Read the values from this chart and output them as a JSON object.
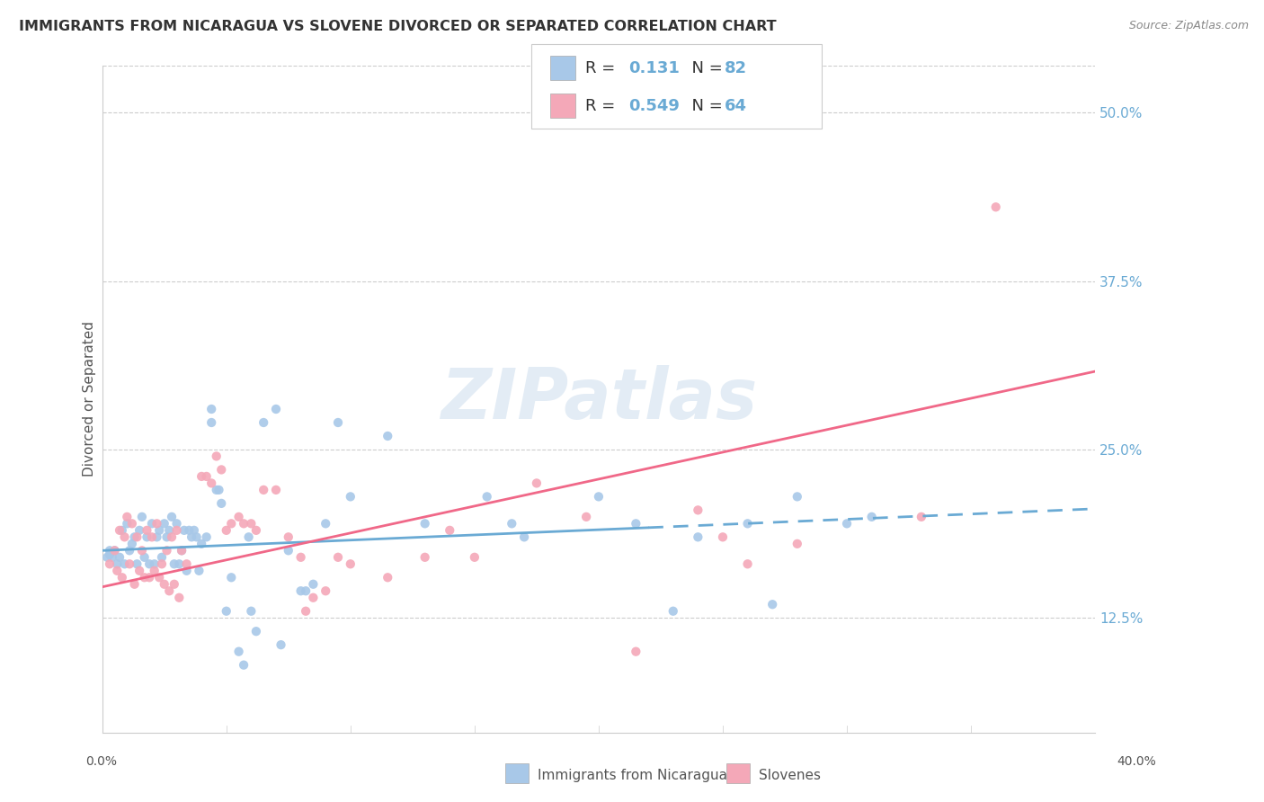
{
  "title": "IMMIGRANTS FROM NICARAGUA VS SLOVENE DIVORCED OR SEPARATED CORRELATION CHART",
  "source": "Source: ZipAtlas.com",
  "ylabel": "Divorced or Separated",
  "yticks": [
    "12.5%",
    "25.0%",
    "37.5%",
    "50.0%"
  ],
  "ytick_vals": [
    0.125,
    0.25,
    0.375,
    0.5
  ],
  "xrange": [
    0.0,
    0.4
  ],
  "yrange": [
    0.04,
    0.535
  ],
  "watermark": "ZIPatlas",
  "color_blue": "#a8c8e8",
  "color_pink": "#f4a8b8",
  "line_blue": "#6aaad4",
  "line_pink": "#f06888",
  "scatter_blue": [
    [
      0.002,
      0.17
    ],
    [
      0.003,
      0.172
    ],
    [
      0.003,
      0.175
    ],
    [
      0.004,
      0.17
    ],
    [
      0.005,
      0.175
    ],
    [
      0.006,
      0.165
    ],
    [
      0.007,
      0.17
    ],
    [
      0.008,
      0.19
    ],
    [
      0.009,
      0.165
    ],
    [
      0.01,
      0.195
    ],
    [
      0.011,
      0.175
    ],
    [
      0.012,
      0.18
    ],
    [
      0.013,
      0.185
    ],
    [
      0.014,
      0.165
    ],
    [
      0.015,
      0.19
    ],
    [
      0.016,
      0.2
    ],
    [
      0.017,
      0.17
    ],
    [
      0.018,
      0.185
    ],
    [
      0.019,
      0.165
    ],
    [
      0.02,
      0.195
    ],
    [
      0.021,
      0.165
    ],
    [
      0.022,
      0.185
    ],
    [
      0.023,
      0.19
    ],
    [
      0.024,
      0.17
    ],
    [
      0.025,
      0.195
    ],
    [
      0.026,
      0.185
    ],
    [
      0.027,
      0.19
    ],
    [
      0.028,
      0.2
    ],
    [
      0.029,
      0.165
    ],
    [
      0.03,
      0.195
    ],
    [
      0.031,
      0.165
    ],
    [
      0.032,
      0.175
    ],
    [
      0.033,
      0.19
    ],
    [
      0.034,
      0.16
    ],
    [
      0.035,
      0.19
    ],
    [
      0.036,
      0.185
    ],
    [
      0.037,
      0.19
    ],
    [
      0.038,
      0.185
    ],
    [
      0.039,
      0.16
    ],
    [
      0.04,
      0.18
    ],
    [
      0.042,
      0.185
    ],
    [
      0.044,
      0.28
    ],
    [
      0.044,
      0.27
    ],
    [
      0.046,
      0.22
    ],
    [
      0.047,
      0.22
    ],
    [
      0.048,
      0.21
    ],
    [
      0.05,
      0.13
    ],
    [
      0.052,
      0.155
    ],
    [
      0.055,
      0.1
    ],
    [
      0.057,
      0.09
    ],
    [
      0.059,
      0.185
    ],
    [
      0.06,
      0.13
    ],
    [
      0.062,
      0.115
    ],
    [
      0.065,
      0.27
    ],
    [
      0.07,
      0.28
    ],
    [
      0.072,
      0.105
    ],
    [
      0.075,
      0.175
    ],
    [
      0.08,
      0.145
    ],
    [
      0.082,
      0.145
    ],
    [
      0.085,
      0.15
    ],
    [
      0.09,
      0.195
    ],
    [
      0.095,
      0.27
    ],
    [
      0.1,
      0.215
    ],
    [
      0.115,
      0.26
    ],
    [
      0.13,
      0.195
    ],
    [
      0.155,
      0.215
    ],
    [
      0.165,
      0.195
    ],
    [
      0.17,
      0.185
    ],
    [
      0.2,
      0.215
    ],
    [
      0.215,
      0.195
    ],
    [
      0.23,
      0.13
    ],
    [
      0.24,
      0.185
    ],
    [
      0.26,
      0.195
    ],
    [
      0.27,
      0.135
    ],
    [
      0.28,
      0.215
    ],
    [
      0.3,
      0.195
    ],
    [
      0.31,
      0.2
    ]
  ],
  "scatter_pink": [
    [
      0.003,
      0.165
    ],
    [
      0.005,
      0.175
    ],
    [
      0.006,
      0.16
    ],
    [
      0.007,
      0.19
    ],
    [
      0.008,
      0.155
    ],
    [
      0.009,
      0.185
    ],
    [
      0.01,
      0.2
    ],
    [
      0.011,
      0.165
    ],
    [
      0.012,
      0.195
    ],
    [
      0.013,
      0.15
    ],
    [
      0.014,
      0.185
    ],
    [
      0.015,
      0.16
    ],
    [
      0.016,
      0.175
    ],
    [
      0.017,
      0.155
    ],
    [
      0.018,
      0.19
    ],
    [
      0.019,
      0.155
    ],
    [
      0.02,
      0.185
    ],
    [
      0.021,
      0.16
    ],
    [
      0.022,
      0.195
    ],
    [
      0.023,
      0.155
    ],
    [
      0.024,
      0.165
    ],
    [
      0.025,
      0.15
    ],
    [
      0.026,
      0.175
    ],
    [
      0.027,
      0.145
    ],
    [
      0.028,
      0.185
    ],
    [
      0.029,
      0.15
    ],
    [
      0.03,
      0.19
    ],
    [
      0.031,
      0.14
    ],
    [
      0.032,
      0.175
    ],
    [
      0.034,
      0.165
    ],
    [
      0.04,
      0.23
    ],
    [
      0.042,
      0.23
    ],
    [
      0.044,
      0.225
    ],
    [
      0.046,
      0.245
    ],
    [
      0.048,
      0.235
    ],
    [
      0.05,
      0.19
    ],
    [
      0.052,
      0.195
    ],
    [
      0.055,
      0.2
    ],
    [
      0.057,
      0.195
    ],
    [
      0.06,
      0.195
    ],
    [
      0.062,
      0.19
    ],
    [
      0.065,
      0.22
    ],
    [
      0.07,
      0.22
    ],
    [
      0.075,
      0.185
    ],
    [
      0.08,
      0.17
    ],
    [
      0.082,
      0.13
    ],
    [
      0.085,
      0.14
    ],
    [
      0.09,
      0.145
    ],
    [
      0.095,
      0.17
    ],
    [
      0.1,
      0.165
    ],
    [
      0.115,
      0.155
    ],
    [
      0.13,
      0.17
    ],
    [
      0.14,
      0.19
    ],
    [
      0.15,
      0.17
    ],
    [
      0.175,
      0.225
    ],
    [
      0.195,
      0.2
    ],
    [
      0.215,
      0.1
    ],
    [
      0.24,
      0.205
    ],
    [
      0.25,
      0.185
    ],
    [
      0.26,
      0.165
    ],
    [
      0.28,
      0.18
    ],
    [
      0.33,
      0.2
    ],
    [
      0.36,
      0.43
    ]
  ],
  "blue_line_solid": {
    "x0": 0.0,
    "y0": 0.175,
    "x1": 0.22,
    "y1": 0.192
  },
  "blue_line_dash": {
    "x0": 0.22,
    "y0": 0.192,
    "x1": 0.4,
    "y1": 0.206
  },
  "pink_line": {
    "x0": 0.0,
    "y0": 0.148,
    "x1": 0.4,
    "y1": 0.308
  },
  "background_color": "#ffffff",
  "grid_color": "#cccccc"
}
